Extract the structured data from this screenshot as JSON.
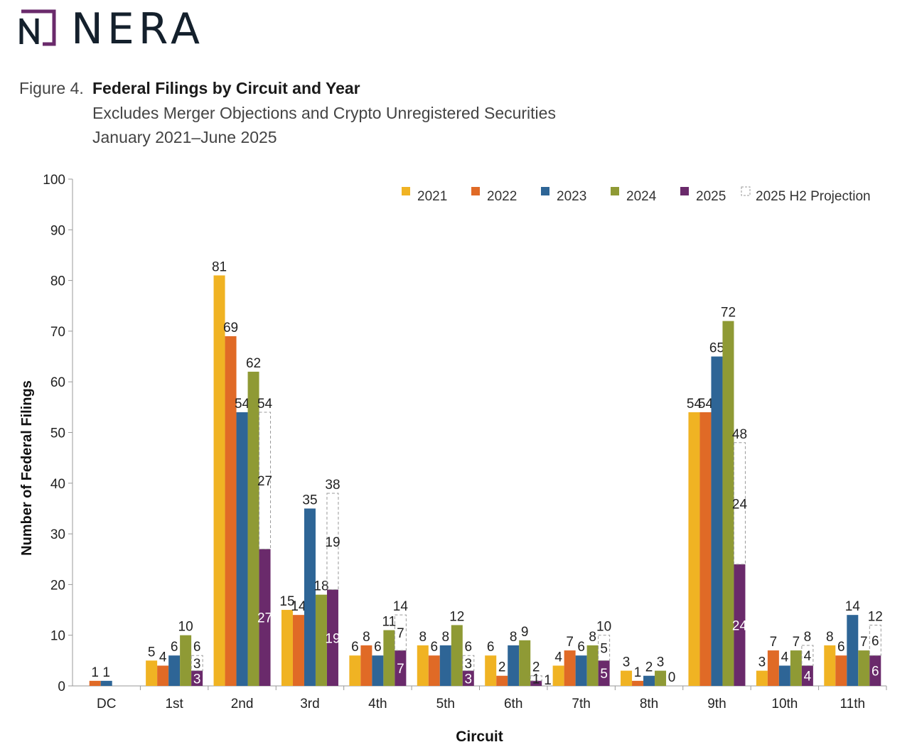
{
  "brand": {
    "name": "NERA",
    "accent": "#6A2A6B"
  },
  "header": {
    "figure_number": "Figure 4.",
    "title": "Federal Filings by Circuit and Year",
    "subtitle": "Excludes Merger Objections and Crypto Unregistered Securities",
    "date_range": "January 2021–June 2025"
  },
  "chart_data": {
    "type": "bar",
    "xlabel": "Circuit",
    "ylabel": "Number of Federal Filings",
    "ylim": [
      0,
      100
    ],
    "yticks": [
      0,
      10,
      20,
      30,
      40,
      50,
      60,
      70,
      80,
      90,
      100
    ],
    "grid": false,
    "legend_position": "top-right",
    "categories": [
      "DC",
      "1st",
      "2nd",
      "3rd",
      "4th",
      "5th",
      "6th",
      "7th",
      "8th",
      "9th",
      "10th",
      "11th"
    ],
    "series": [
      {
        "name": "2021",
        "color": "#F0B323",
        "values": [
          null,
          5,
          81,
          15,
          6,
          8,
          6,
          4,
          3,
          54,
          3,
          8
        ]
      },
      {
        "name": "2022",
        "color": "#E06A26",
        "values": [
          1,
          4,
          69,
          14,
          8,
          6,
          2,
          7,
          1,
          54,
          7,
          6
        ]
      },
      {
        "name": "2023",
        "color": "#2E6596",
        "values": [
          1,
          6,
          54,
          35,
          6,
          8,
          8,
          6,
          2,
          65,
          4,
          14
        ]
      },
      {
        "name": "2024",
        "color": "#8F9A35",
        "values": [
          null,
          10,
          62,
          18,
          11,
          12,
          9,
          8,
          3,
          72,
          7,
          7
        ]
      },
      {
        "name": "2025",
        "color": "#6A2A6B",
        "values": [
          null,
          3,
          27,
          19,
          7,
          3,
          1,
          5,
          0,
          24,
          4,
          6
        ]
      }
    ],
    "projection": {
      "name": "2025 H2 Projection",
      "totals": [
        null,
        6,
        54,
        38,
        14,
        6,
        2,
        10,
        null,
        48,
        8,
        12
      ],
      "h2_values": [
        null,
        3,
        27,
        19,
        7,
        3,
        1,
        5,
        null,
        24,
        4,
        6
      ]
    }
  }
}
